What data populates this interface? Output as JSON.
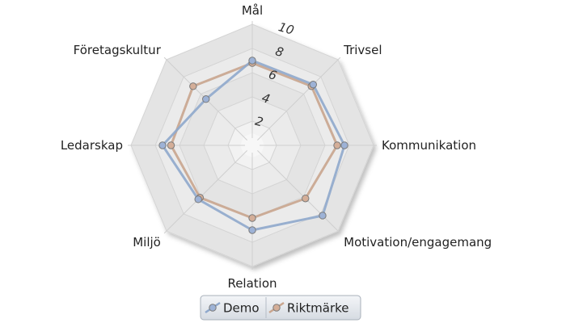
{
  "chart_data": {
    "type": "radar",
    "axes": [
      "Mål",
      "Trivsel",
      "Kommunikation",
      "Motivation/engagemang",
      "Relation",
      "Miljö",
      "Ledarskap",
      "Företagskultur"
    ],
    "rlim": [
      0,
      10
    ],
    "tick_values": [
      2,
      4,
      6,
      8,
      10
    ],
    "tick_labels": [
      "2",
      "4",
      "6",
      "8",
      "10"
    ],
    "grid": true,
    "legend_position": "bottom-center",
    "series": [
      {
        "name": "Demo",
        "values": [
          7.0,
          7.1,
          7.6,
          8.2,
          7.0,
          6.3,
          7.4,
          5.4
        ],
        "color": "#8fa8cc",
        "marker_color": "#9db2d6"
      },
      {
        "name": "Riktmärke",
        "values": [
          6.8,
          6.9,
          7.0,
          6.2,
          6.0,
          6.1,
          6.7,
          6.9
        ],
        "color": "#c9a58e",
        "marker_color": "#d4ae98"
      }
    ]
  }
}
